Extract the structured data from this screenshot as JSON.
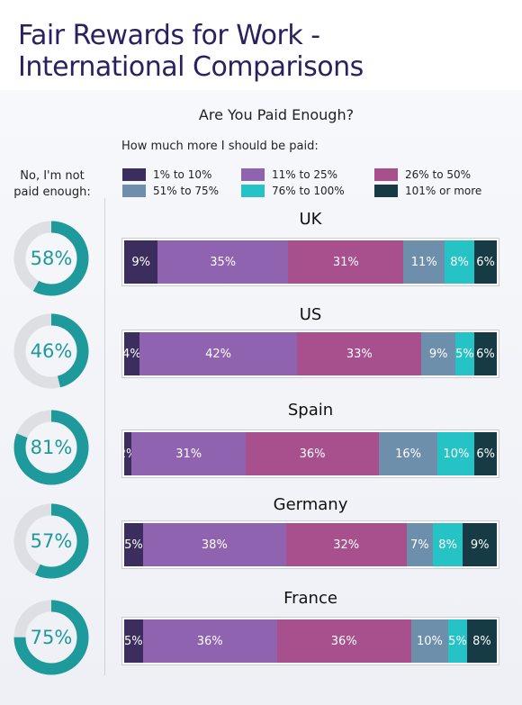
{
  "title_line1": "Fair Rewards for Work -",
  "title_line2": "International Comparisons",
  "left_caption_line1": "No, I'm not",
  "left_caption_line2": "paid enough:",
  "chart_data": {
    "type": "bar",
    "stacked": true,
    "orientation": "horizontal",
    "title": "Are You Paid Enough?",
    "legend_title": "How much more I should be paid:",
    "legend_placement": "top",
    "categories": [
      "UK",
      "US",
      "Spain",
      "Germany",
      "France"
    ],
    "series": [
      {
        "name": "1% to 10%",
        "color": "#3b2e5e",
        "values": [
          9,
          4,
          2,
          5,
          5
        ]
      },
      {
        "name": "11% to 25%",
        "color": "#9063b0",
        "values": [
          35,
          42,
          31,
          38,
          36
        ]
      },
      {
        "name": "26% to 50%",
        "color": "#a7508d",
        "values": [
          31,
          33,
          36,
          32,
          36
        ]
      },
      {
        "name": "51% to 75%",
        "color": "#6e8fab",
        "values": [
          11,
          9,
          16,
          7,
          10
        ]
      },
      {
        "name": "76% to 100%",
        "color": "#26c3c6",
        "values": [
          8,
          5,
          10,
          8,
          5
        ]
      },
      {
        "name": "101% or  more",
        "color": "#173b45",
        "values": [
          6,
          6,
          6,
          9,
          8
        ]
      }
    ],
    "not_paid_enough": {
      "type": "pie",
      "values": [
        58,
        46,
        81,
        57,
        75
      ],
      "color": "#1e9a9c",
      "remainder_color": "#dedfe3"
    }
  }
}
